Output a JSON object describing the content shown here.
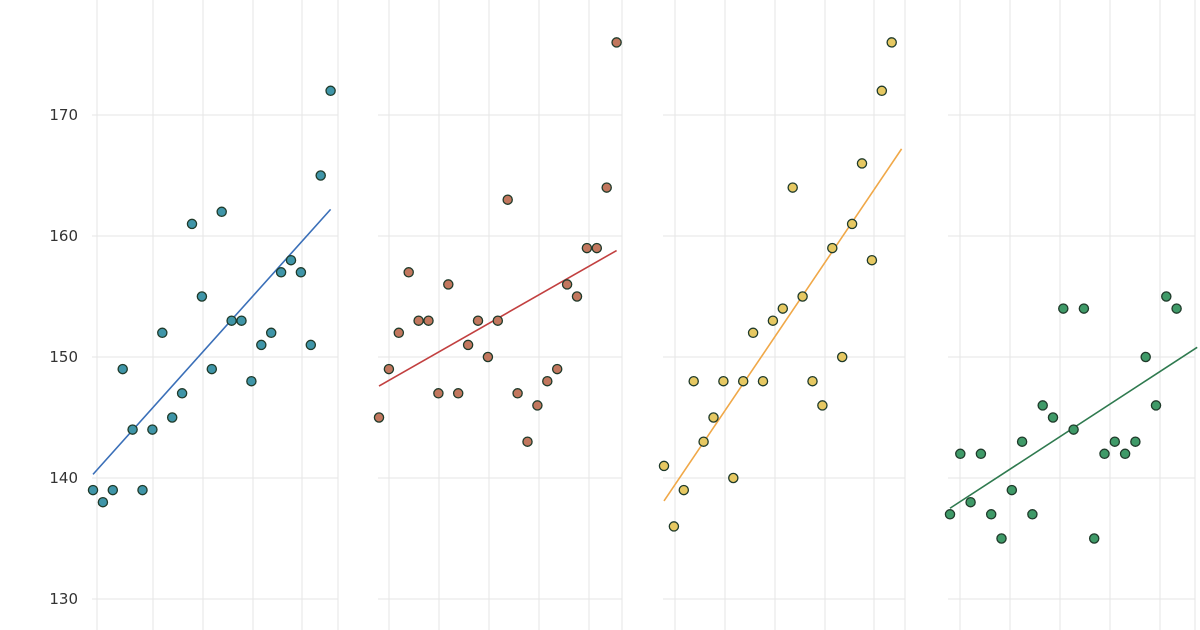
{
  "chart_data": {
    "type": "scatter",
    "facets": 4,
    "grid": true,
    "y_ticks": [
      "130",
      "140",
      "150",
      "160",
      "170",
      "180"
    ],
    "ylim": [
      128,
      180
    ],
    "xlim": [
      0,
      25
    ],
    "series": [
      {
        "color": "#3f95a8",
        "line_color": "#3a6fb8",
        "fit": [
          [
            0,
            140.3
          ],
          [
            24,
            162.2
          ]
        ],
        "points": [
          [
            0,
            139
          ],
          [
            1,
            138
          ],
          [
            2,
            139
          ],
          [
            3,
            149
          ],
          [
            4,
            144
          ],
          [
            5,
            139
          ],
          [
            6,
            144
          ],
          [
            7,
            152
          ],
          [
            8,
            145
          ],
          [
            9,
            147
          ],
          [
            10,
            161
          ],
          [
            11,
            155
          ],
          [
            12,
            149
          ],
          [
            13,
            162
          ],
          [
            14,
            153
          ],
          [
            15,
            153
          ],
          [
            16,
            148
          ],
          [
            17,
            151
          ],
          [
            18,
            152
          ],
          [
            19,
            157
          ],
          [
            20,
            158
          ],
          [
            21,
            157
          ],
          [
            22,
            151
          ],
          [
            23,
            165
          ],
          [
            24,
            172
          ]
        ]
      },
      {
        "color": "#c2775e",
        "line_color": "#c24040",
        "fit": [
          [
            0,
            147.6
          ],
          [
            24,
            158.8
          ]
        ],
        "points": [
          [
            0,
            145
          ],
          [
            1,
            149
          ],
          [
            2,
            152
          ],
          [
            3,
            157
          ],
          [
            4,
            153
          ],
          [
            5,
            153
          ],
          [
            6,
            147
          ],
          [
            7,
            156
          ],
          [
            8,
            147
          ],
          [
            9,
            151
          ],
          [
            10,
            153
          ],
          [
            11,
            150
          ],
          [
            12,
            153
          ],
          [
            13,
            163
          ],
          [
            14,
            147
          ],
          [
            15,
            143
          ],
          [
            16,
            146
          ],
          [
            17,
            148
          ],
          [
            18,
            149
          ],
          [
            19,
            156
          ],
          [
            20,
            155
          ],
          [
            21,
            159
          ],
          [
            22,
            159
          ],
          [
            23,
            164
          ],
          [
            24,
            176
          ]
        ]
      },
      {
        "color": "#e6c862",
        "line_color": "#f0a848",
        "fit": [
          [
            0,
            138.1
          ],
          [
            24,
            167.2
          ]
        ],
        "points": [
          [
            0,
            141
          ],
          [
            1,
            136
          ],
          [
            2,
            139
          ],
          [
            3,
            148
          ],
          [
            4,
            143
          ],
          [
            5,
            145
          ],
          [
            6,
            148
          ],
          [
            7,
            140
          ],
          [
            8,
            148
          ],
          [
            9,
            152
          ],
          [
            10,
            148
          ],
          [
            11,
            153
          ],
          [
            12,
            154
          ],
          [
            13,
            164
          ],
          [
            14,
            155
          ],
          [
            15,
            148
          ],
          [
            16,
            146
          ],
          [
            17,
            159
          ],
          [
            18,
            150
          ],
          [
            19,
            161
          ],
          [
            20,
            166
          ],
          [
            21,
            158
          ],
          [
            22,
            172
          ],
          [
            23,
            176
          ]
        ]
      },
      {
        "color": "#3f9a68",
        "line_color": "#2f7a4f",
        "fit": [
          [
            0,
            137.5
          ],
          [
            24,
            150.8
          ]
        ],
        "points": [
          [
            0,
            137
          ],
          [
            1,
            142
          ],
          [
            2,
            138
          ],
          [
            3,
            142
          ],
          [
            4,
            137
          ],
          [
            5,
            135
          ],
          [
            6,
            139
          ],
          [
            7,
            143
          ],
          [
            8,
            137
          ],
          [
            9,
            146
          ],
          [
            10,
            145
          ],
          [
            11,
            154
          ],
          [
            12,
            144
          ],
          [
            13,
            154
          ],
          [
            14,
            135
          ],
          [
            15,
            142
          ],
          [
            16,
            143
          ],
          [
            17,
            142
          ],
          [
            18,
            143
          ],
          [
            19,
            150
          ],
          [
            20,
            146
          ],
          [
            21,
            155
          ],
          [
            22,
            154
          ]
        ]
      }
    ]
  }
}
